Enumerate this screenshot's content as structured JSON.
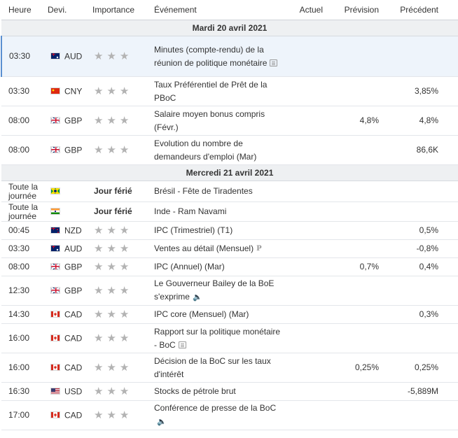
{
  "header": {
    "time": "Heure",
    "currency": "Devi.",
    "importance": "Importance",
    "event": "Événement",
    "actual": "Actuel",
    "forecast": "Prévision",
    "previous": "Précédent"
  },
  "days": [
    {
      "label": "Mardi 20 avril 2021",
      "events": [
        {
          "time": "03:30",
          "flag": "australia-flag",
          "currency": "AUD",
          "stars": "★★★",
          "event": "Minutes (compte-rendu) de la réunion de politique monétaire",
          "icon": "document-icon",
          "actual": "",
          "forecast": "",
          "previous": ""
        },
        {
          "time": "03:30",
          "flag": "china-flag",
          "currency": "CNY",
          "stars": "★★★",
          "event": "Taux Préférentiel de Prêt de la PBoC",
          "icon": "",
          "actual": "",
          "forecast": "",
          "previous": "3,85%"
        },
        {
          "time": "08:00",
          "flag": "uk-flag",
          "currency": "GBP",
          "stars": "★★★",
          "event": "Salaire moyen bonus compris (Févr.)",
          "icon": "",
          "actual": "",
          "forecast": "4,8%",
          "previous": "4,8%"
        },
        {
          "time": "08:00",
          "flag": "uk-flag",
          "currency": "GBP",
          "stars": "★★★",
          "event": "Evolution du nombre de demandeurs d'emploi (Mar)",
          "icon": "",
          "actual": "",
          "forecast": "",
          "previous": "86,6K"
        }
      ]
    },
    {
      "label": "Mercredi 21 avril 2021",
      "events": [
        {
          "time": "Toute la journée",
          "flag": "brazil-flag",
          "currency": "",
          "holiday": "Jour férié",
          "event": "Brésil - Fête de Tiradentes",
          "icon": "",
          "actual": "",
          "forecast": "",
          "previous": ""
        },
        {
          "time": "Toute la journée",
          "flag": "india-flag",
          "currency": "",
          "holiday": "Jour férié",
          "event": "Inde - Ram Navami",
          "icon": "",
          "actual": "",
          "forecast": "",
          "previous": ""
        },
        {
          "time": "00:45",
          "flag": "new-zealand-flag",
          "currency": "NZD",
          "stars": "★★★",
          "event": "IPC (Trimestriel) (T1)",
          "icon": "",
          "actual": "",
          "forecast": "",
          "previous": "0,5%"
        },
        {
          "time": "03:30",
          "flag": "australia-flag",
          "currency": "AUD",
          "stars": "★★★",
          "event": "Ventes au détail (Mensuel)",
          "icon": "preliminary-icon",
          "actual": "",
          "forecast": "",
          "previous": "-0,8%"
        },
        {
          "time": "08:00",
          "flag": "uk-flag",
          "currency": "GBP",
          "stars": "★★★",
          "event": "IPC (Annuel) (Mar)",
          "icon": "",
          "actual": "",
          "forecast": "0,7%",
          "previous": "0,4%"
        },
        {
          "time": "12:30",
          "flag": "uk-flag",
          "currency": "GBP",
          "stars": "★★★",
          "event": "Le Gouverneur Bailey de la BoE s'exprime",
          "icon": "speaker-icon",
          "actual": "",
          "forecast": "",
          "previous": ""
        },
        {
          "time": "14:30",
          "flag": "canada-flag",
          "currency": "CAD",
          "stars": "★★★",
          "event": "IPC core (Mensuel) (Mar)",
          "icon": "",
          "actual": "",
          "forecast": "",
          "previous": "0,3%"
        },
        {
          "time": "16:00",
          "flag": "canada-flag",
          "currency": "CAD",
          "stars": "★★★",
          "event": "Rapport sur la politique monétaire - BoC",
          "icon": "document-icon",
          "actual": "",
          "forecast": "",
          "previous": ""
        },
        {
          "time": "16:00",
          "flag": "canada-flag",
          "currency": "CAD",
          "stars": "★★★",
          "event": "Décision de la BoC sur les taux d'intérêt",
          "icon": "",
          "actual": "",
          "forecast": "0,25%",
          "previous": "0,25%"
        },
        {
          "time": "16:30",
          "flag": "usa-flag",
          "currency": "USD",
          "stars": "★★★",
          "event": "Stocks de pétrole brut",
          "icon": "",
          "actual": "",
          "forecast": "",
          "previous": "-5,889M"
        },
        {
          "time": "17:00",
          "flag": "canada-flag",
          "currency": "CAD",
          "stars": "★★★",
          "event": "Conférence de presse de la BoC",
          "icon": "speaker-icon",
          "actual": "",
          "forecast": "",
          "previous": ""
        }
      ]
    }
  ],
  "colors": {
    "star": "#b3b3b3",
    "highlight_row": "#eef4fb",
    "day_header": "#eef0f2",
    "accent": "#5a8fd0"
  }
}
